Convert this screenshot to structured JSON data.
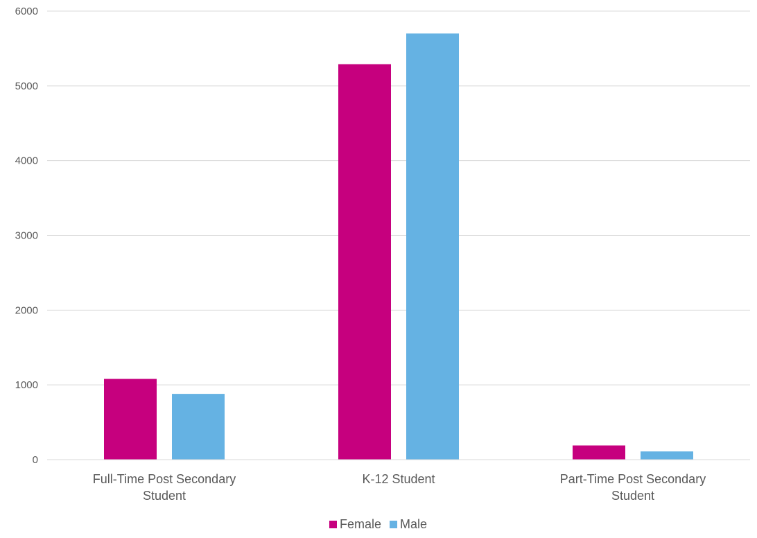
{
  "chart_data": {
    "type": "bar",
    "title": "",
    "xlabel": "",
    "ylabel": "",
    "categories": [
      [
        "Full-Time Post Secondary",
        "Student"
      ],
      [
        "K-12 Student"
      ],
      [
        "Part-Time Post Secondary",
        "Student"
      ]
    ],
    "series": [
      {
        "name": "Female",
        "color": "#c6007e",
        "values": [
          1080,
          5290,
          190
        ]
      },
      {
        "name": "Male",
        "color": "#65b2e3",
        "values": [
          880,
          5700,
          110
        ]
      }
    ],
    "ylim": [
      0,
      6000
    ],
    "yticks": [
      "0",
      "1000",
      "2000",
      "3000",
      "4000",
      "5000",
      "6000"
    ],
    "grid": true,
    "legend_position": "bottom"
  }
}
